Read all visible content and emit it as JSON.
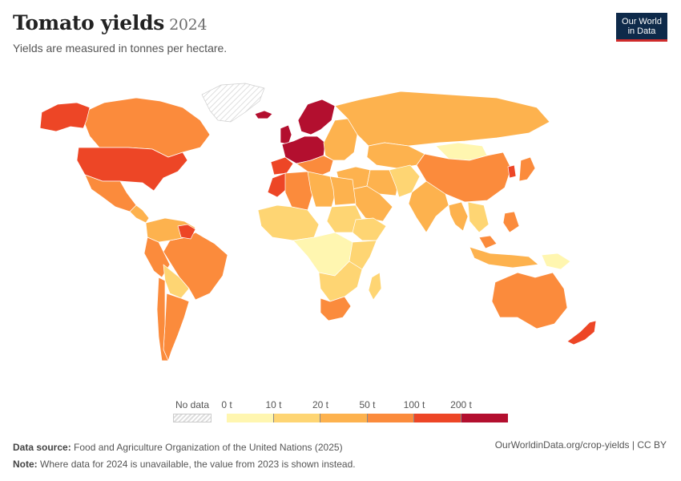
{
  "header": {
    "title": "Tomato yields",
    "year": "2024",
    "subtitle": "Yields are measured in tonnes per hectare."
  },
  "logo": {
    "line1": "Our World",
    "line2": "in Data"
  },
  "legend": {
    "no_data_label": "No data",
    "bins": [
      {
        "label": "0 t",
        "color": "#fff6b0"
      },
      {
        "label": "10 t",
        "color": "#fed573"
      },
      {
        "label": "20 t",
        "color": "#fdb24e"
      },
      {
        "label": "50 t",
        "color": "#fb8b3c"
      },
      {
        "label": "100 t",
        "color": "#ed4626"
      },
      {
        "label": "200 t",
        "color": "#b30f2f"
      }
    ]
  },
  "regions": [
    {
      "name": "Canada",
      "color": "#fb8b3c"
    },
    {
      "name": "Alaska",
      "color": "#ed4626"
    },
    {
      "name": "United States",
      "color": "#ed4626"
    },
    {
      "name": "Greenland",
      "color": "no-data"
    },
    {
      "name": "Mexico",
      "color": "#fb8b3c"
    },
    {
      "name": "Central America",
      "color": "#fdb24e"
    },
    {
      "name": "Brazil",
      "color": "#fb8b3c"
    },
    {
      "name": "Northern South America",
      "color": "#fdb24e"
    },
    {
      "name": "Guyana",
      "color": "#ed4626"
    },
    {
      "name": "Peru",
      "color": "#fb8b3c"
    },
    {
      "name": "Bolivia and Paraguay",
      "color": "#fed573"
    },
    {
      "name": "Argentina",
      "color": "#fb8b3c"
    },
    {
      "name": "Chile",
      "color": "#fb8b3c"
    },
    {
      "name": "Iceland",
      "color": "#b30f2f"
    },
    {
      "name": "United Kingdom",
      "color": "#b30f2f"
    },
    {
      "name": "Scandinavia",
      "color": "#b30f2f"
    },
    {
      "name": "Western Europe",
      "color": "#b30f2f"
    },
    {
      "name": "Spain and Portugal",
      "color": "#ed4626"
    },
    {
      "name": "Southern Europe",
      "color": "#fb8b3c"
    },
    {
      "name": "Eastern Europe",
      "color": "#fdb24e"
    },
    {
      "name": "Russia",
      "color": "#fdb24e"
    },
    {
      "name": "Kazakhstan",
      "color": "#fdb24e"
    },
    {
      "name": "Mongolia",
      "color": "#fff6b0"
    },
    {
      "name": "China",
      "color": "#fb8b3c"
    },
    {
      "name": "Japan",
      "color": "#fb8b3c"
    },
    {
      "name": "Korea",
      "color": "#ed4626"
    },
    {
      "name": "Middle East",
      "color": "#fdb24e"
    },
    {
      "name": "Arabian Peninsula",
      "color": "#fdb24e"
    },
    {
      "name": "Iran",
      "color": "#fdb24e"
    },
    {
      "name": "Pakistan and Afghanistan",
      "color": "#fed573"
    },
    {
      "name": "India",
      "color": "#fdb24e"
    },
    {
      "name": "Myanmar and Thailand",
      "color": "#fdb24e"
    },
    {
      "name": "Indochina",
      "color": "#fed573"
    },
    {
      "name": "Indonesia",
      "color": "#fdb24e"
    },
    {
      "name": "Malaysia",
      "color": "#fb8b3c"
    },
    {
      "name": "Philippines",
      "color": "#fb8b3c"
    },
    {
      "name": "Papua New Guinea",
      "color": "#fff6b0"
    },
    {
      "name": "Morocco",
      "color": "#ed4626"
    },
    {
      "name": "Algeria",
      "color": "#fb8b3c"
    },
    {
      "name": "Libya",
      "color": "#fdb24e"
    },
    {
      "name": "Egypt",
      "color": "#fdb24e"
    },
    {
      "name": "West Africa",
      "color": "#fed573"
    },
    {
      "name": "Sudan",
      "color": "#fed573"
    },
    {
      "name": "Ethiopia",
      "color": "#fed573"
    },
    {
      "name": "Central Africa",
      "color": "#fff6b0"
    },
    {
      "name": "East Africa",
      "color": "#fed573"
    },
    {
      "name": "Southern Africa",
      "color": "#fed573"
    },
    {
      "name": "South Africa",
      "color": "#fb8b3c"
    },
    {
      "name": "Madagascar",
      "color": "#fed573"
    },
    {
      "name": "Australia",
      "color": "#fb8b3c"
    },
    {
      "name": "New Zealand",
      "color": "#ed4626"
    }
  ],
  "footer": {
    "source_label": "Data source:",
    "source_text": "Food and Agriculture Organization of the United Nations (2025)",
    "note_label": "Note:",
    "note_text": "Where data for 2024 is unavailable, the value from 2023 is shown instead.",
    "url": "OurWorldinData.org/crop-yields | CC BY"
  }
}
